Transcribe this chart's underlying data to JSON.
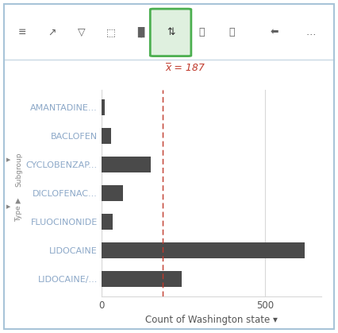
{
  "categories": [
    "AMANTADINE...",
    "BACLOFEN",
    "CYCLOBENZAP...",
    "DICLOFENAC...",
    "FLUOCINONIDE",
    "LIDOCAINE",
    "LIDOCAINE/..."
  ],
  "values": [
    10,
    30,
    150,
    65,
    35,
    620,
    245
  ],
  "bar_color": "#4a4a4a",
  "mean_value": 187,
  "mean_label": "x̅ = 187",
  "mean_color": "#c0392b",
  "xlabel": "Count of Washington state ▾",
  "xlim": [
    0,
    670
  ],
  "xticks": [
    0,
    500
  ],
  "background_color": "#ffffff",
  "label_color": "#8ca8c8",
  "border_color": "#a8c4d8",
  "grid_color": "#d8d8d8",
  "toolbar_bg": "#f7f9fb",
  "toolbar_border": "#c8d8e4"
}
